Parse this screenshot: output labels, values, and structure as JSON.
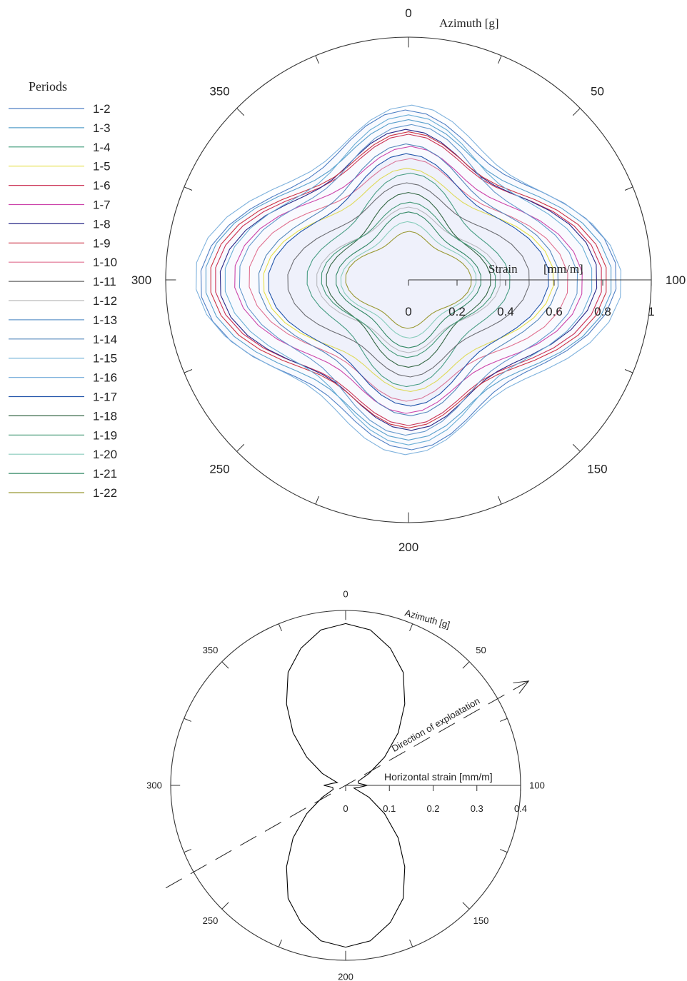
{
  "chart_data": [
    {
      "type": "polar-line",
      "legend_title": "Periods",
      "legend_position": "left",
      "angle_label": "Azimuth [g]",
      "radial_label": "Strain",
      "radial_unit": "[mm/m]",
      "angle_unit": "gon",
      "angle_ticks": [
        0,
        50,
        100,
        150,
        200,
        250,
        300,
        350
      ],
      "angle_tick_labels": [
        "0",
        "50",
        "100",
        "150",
        "200",
        "250",
        "300",
        "350"
      ],
      "radial_ticks": [
        0,
        0.2,
        0.4,
        0.6,
        0.8,
        1
      ],
      "radial_tick_labels": [
        "0",
        "0.2",
        "0.4",
        "0.6",
        "0.8",
        "1"
      ],
      "rlim": [
        0,
        1
      ],
      "series": [
        {
          "name": "1-2",
          "color": "#4f7fc4",
          "peak_ns": 0.7,
          "peak_ew": 0.86
        },
        {
          "name": "1-3",
          "color": "#5aa0cc",
          "peak_ns": 0.66,
          "peak_ew": 0.84
        },
        {
          "name": "1-4",
          "color": "#3f9c7a",
          "peak_ns": 0.44,
          "peak_ew": 0.42
        },
        {
          "name": "1-5",
          "color": "#e6e04a",
          "peak_ns": 0.46,
          "peak_ew": 0.6
        },
        {
          "name": "1-6",
          "color": "#cc3355",
          "peak_ns": 0.6,
          "peak_ew": 0.8
        },
        {
          "name": "1-7",
          "color": "#cc44aa",
          "peak_ns": 0.55,
          "peak_ew": 0.72
        },
        {
          "name": "1-8",
          "color": "#2a2a88",
          "peak_ns": 0.62,
          "peak_ew": 0.78
        },
        {
          "name": "1-9",
          "color": "#cc3344",
          "peak_ns": 0.61,
          "peak_ew": 0.82
        },
        {
          "name": "1-10",
          "color": "#e07090",
          "peak_ns": 0.5,
          "peak_ew": 0.66
        },
        {
          "name": "1-11",
          "color": "#666666",
          "peak_ns": 0.4,
          "peak_ew": 0.5
        },
        {
          "name": "1-12",
          "color": "#bbbbbb",
          "peak_ns": 0.3,
          "peak_ew": 0.38
        },
        {
          "name": "1-13",
          "color": "#6699cc",
          "peak_ns": 0.64,
          "peak_ew": 0.7
        },
        {
          "name": "1-14",
          "color": "#5588bb",
          "peak_ns": 0.56,
          "peak_ew": 0.62
        },
        {
          "name": "1-15",
          "color": "#6aaed6",
          "peak_ns": 0.68,
          "peak_ew": 0.76
        },
        {
          "name": "1-16",
          "color": "#7fb2dd",
          "peak_ns": 0.72,
          "peak_ew": 0.88
        },
        {
          "name": "1-17",
          "color": "#2255aa",
          "peak_ns": 0.52,
          "peak_ew": 0.58
        },
        {
          "name": "1-18",
          "color": "#336644",
          "peak_ns": 0.36,
          "peak_ew": 0.34
        },
        {
          "name": "1-19",
          "color": "#449977",
          "peak_ns": 0.32,
          "peak_ew": 0.36
        },
        {
          "name": "1-20",
          "color": "#88ccbb",
          "peak_ns": 0.24,
          "peak_ew": 0.28
        },
        {
          "name": "1-21",
          "color": "#338866",
          "peak_ns": 0.28,
          "peak_ew": 0.3
        },
        {
          "name": "1-22",
          "color": "#999933",
          "peak_ns": 0.2,
          "peak_ew": 0.26
        }
      ]
    },
    {
      "type": "polar-line",
      "angle_label": "Azimuth [g]",
      "radial_label": "Horizontal strain [mm/m]",
      "annotation": "Direction of exploatation",
      "annotation_direction_g": 67,
      "angle_unit": "gon",
      "angle_ticks": [
        0,
        50,
        100,
        150,
        200,
        250,
        300,
        350
      ],
      "angle_tick_labels": [
        "0",
        "50",
        "100",
        "150",
        "200",
        "250",
        "300",
        "350"
      ],
      "radial_ticks": [
        0,
        0.1,
        0.2,
        0.3,
        0.4
      ],
      "radial_tick_labels": [
        "0",
        "0.1",
        "0.2",
        "0.3",
        "0.4"
      ],
      "rlim": [
        0,
        0.4
      ],
      "series": [
        {
          "name": "",
          "color": "#000000",
          "azimuth_g": [
            0,
            10,
            20,
            30,
            40,
            50,
            60,
            70,
            80,
            90,
            100,
            110,
            120,
            130,
            140,
            150,
            160,
            170,
            180,
            190,
            200,
            210,
            220,
            230,
            240,
            250,
            260,
            270,
            280,
            290,
            300,
            310,
            320,
            330,
            340,
            350,
            360,
            370,
            380,
            390
          ],
          "strain": [
            0.37,
            0.36,
            0.33,
            0.29,
            0.23,
            0.17,
            0.11,
            0.06,
            0.03,
            0.03,
            0.05,
            0.03,
            0.02,
            0.06,
            0.11,
            0.17,
            0.23,
            0.29,
            0.33,
            0.36,
            0.37,
            0.36,
            0.33,
            0.29,
            0.23,
            0.17,
            0.11,
            0.06,
            0.03,
            0.03,
            0.05,
            0.03,
            0.02,
            0.06,
            0.11,
            0.17,
            0.23,
            0.29,
            0.33,
            0.36
          ]
        }
      ]
    }
  ]
}
